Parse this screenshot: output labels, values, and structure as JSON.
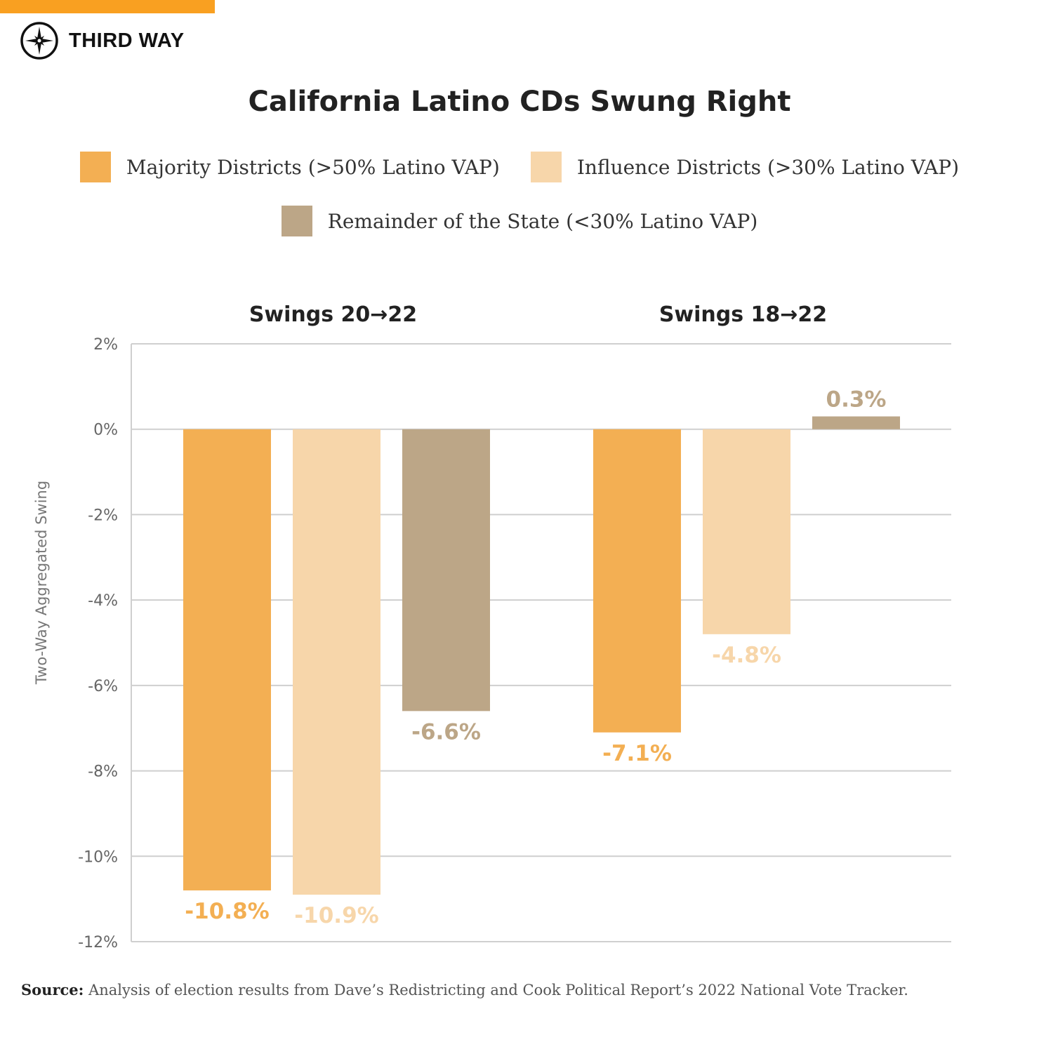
{
  "brand": {
    "name": "THIRD WAY",
    "accent": "#f9a021"
  },
  "source": {
    "label": "Source:",
    "text": "Analysis of election results from Dave’s Redistricting and Cook Political Report’s 2022 National Vote Tracker."
  },
  "chart_data": {
    "type": "bar",
    "title": "California Latino CDs Swung Right",
    "ylabel": "Two-Way Aggregated Swing",
    "ylim": [
      -12,
      2
    ],
    "yticks": [
      2,
      0,
      -2,
      -4,
      -6,
      -8,
      -10,
      -12
    ],
    "ytick_labels": [
      "2%",
      "0%",
      "-2%",
      "-4%",
      "-6%",
      "-8%",
      "-10%",
      "-12%"
    ],
    "grid": true,
    "legend_position": "top",
    "categories": [
      "Swings 20→22",
      "Swings 18→22"
    ],
    "series": [
      {
        "name": "Majority Districts (>50% Latino VAP)",
        "color": "#f3af53",
        "values": [
          -10.8,
          -7.1
        ],
        "labels": [
          "-10.8%",
          "-7.1%"
        ]
      },
      {
        "name": "Influence Districts (>30% Latino VAP)",
        "color": "#f7d6aa",
        "values": [
          -10.9,
          -4.8
        ],
        "labels": [
          "-10.9%",
          "-4.8%"
        ]
      },
      {
        "name": "Remainder of the State (<30% Latino VAP)",
        "color": "#bca687",
        "values": [
          -6.6,
          0.3
        ],
        "labels": [
          "-6.6%",
          "0.3%"
        ]
      }
    ]
  }
}
